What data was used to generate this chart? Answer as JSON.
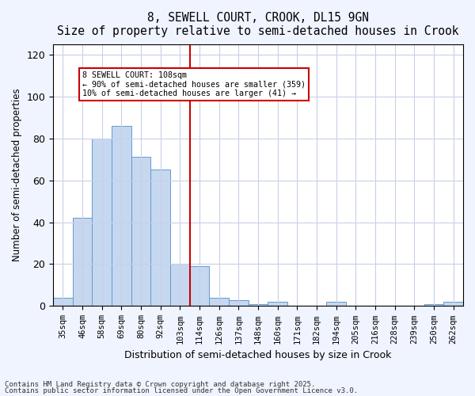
{
  "title1": "8, SEWELL COURT, CROOK, DL15 9GN",
  "title2": "Size of property relative to semi-detached houses in Crook",
  "xlabel": "Distribution of semi-detached houses by size in Crook",
  "ylabel": "Number of semi-detached properties",
  "categories": [
    "35sqm",
    "46sqm",
    "58sqm",
    "69sqm",
    "80sqm",
    "92sqm",
    "103sqm",
    "114sqm",
    "126sqm",
    "137sqm",
    "148sqm",
    "160sqm",
    "171sqm",
    "182sqm",
    "194sqm",
    "205sqm",
    "216sqm",
    "228sqm",
    "239sqm",
    "250sqm",
    "262sqm"
  ],
  "values": [
    4,
    42,
    80,
    86,
    71,
    65,
    20,
    19,
    4,
    3,
    1,
    2,
    0,
    0,
    2,
    0,
    0,
    0,
    0,
    1,
    2
  ],
  "bar_color": "#c5d8f0",
  "bar_edge_color": "#6699cc",
  "vline_x": 7,
  "vline_color": "#cc0000",
  "annotation_text": "8 SEWELL COURT: 108sqm\n← 90% of semi-detached houses are smaller (359)\n10% of semi-detached houses are larger (41) →",
  "annotation_box_color": "#cc0000",
  "ylim": [
    0,
    125
  ],
  "yticks": [
    0,
    20,
    40,
    60,
    80,
    100,
    120
  ],
  "footnote1": "Contains HM Land Registry data © Crown copyright and database right 2025.",
  "footnote2": "Contains public sector information licensed under the Open Government Licence v3.0.",
  "bg_color": "#f0f4ff",
  "plot_bg_color": "#ffffff",
  "grid_color": "#c8d0e8"
}
